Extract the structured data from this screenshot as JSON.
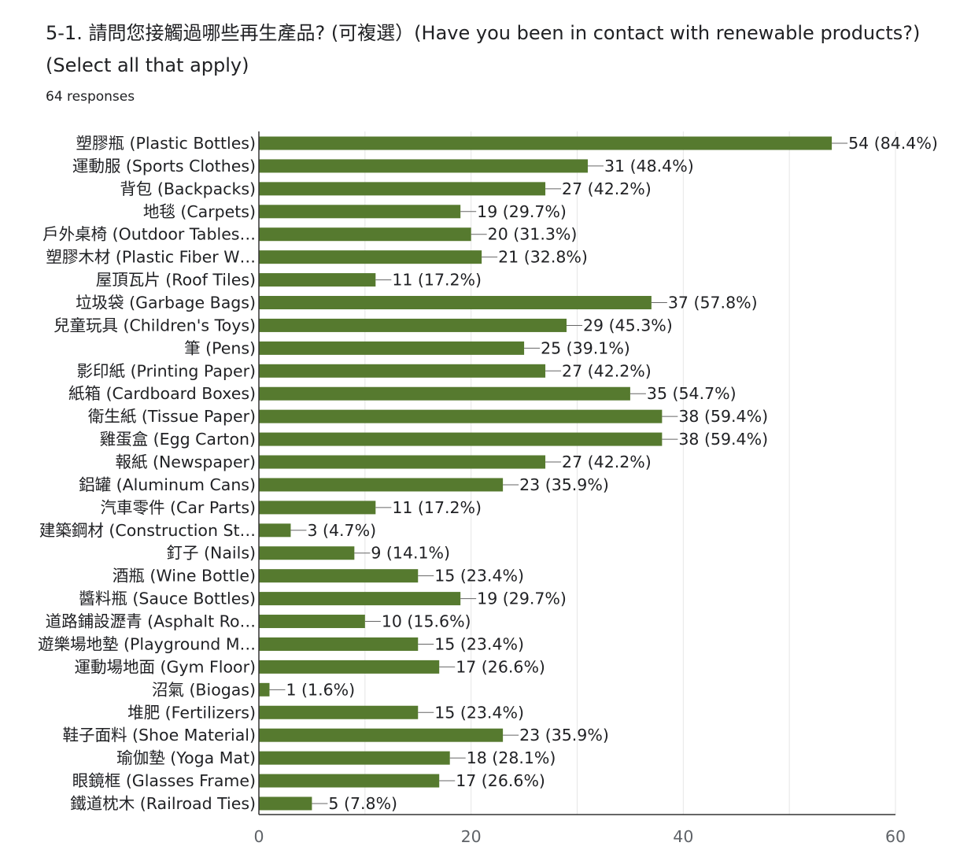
{
  "header": {
    "title": "5-1. 請問您接觸過哪些再生產品? (可複選）(Have you been in contact with renewable products?)(Select all that apply)",
    "responses": "64 responses"
  },
  "colors": {
    "bar": "#567A2F",
    "grid": "#e6e6e6",
    "axis": "#333333"
  },
  "chart_data": {
    "type": "bar",
    "orientation": "horizontal",
    "title": "5-1. 請問您接觸過哪些再生產品? (可複選）(Have you been in contact with renewable products?)(Select all that apply)",
    "subtitle": "64 responses",
    "total_responses": 64,
    "xlim": [
      0,
      60
    ],
    "xticks": [
      0,
      20,
      40,
      60
    ],
    "grid": true,
    "categories": [
      "塑膠瓶 (Plastic Bottles)",
      "運動服 (Sports Clothes)",
      "背包 (Backpacks)",
      "地毯 (Carpets)",
      "戶外桌椅 (Outdoor Tables…",
      "塑膠木材 (Plastic Fiber W…",
      "屋頂瓦片 (Roof Tiles)",
      "垃圾袋 (Garbage Bags)",
      "兒童玩具 (Children's Toys)",
      "筆 (Pens)",
      "影印紙 (Printing Paper)",
      "紙箱 (Cardboard Boxes)",
      "衛生紙 (Tissue Paper)",
      "雞蛋盒 (Egg Carton)",
      "報紙 (Newspaper)",
      "鋁罐 (Aluminum Cans)",
      "汽車零件 (Car Parts)",
      "建築鋼材 (Construction St…",
      "釘子 (Nails)",
      "酒瓶 (Wine Bottle)",
      "醬料瓶 (Sauce Bottles)",
      "道路鋪設瀝青 (Asphalt Ro…",
      "遊樂場地墊 (Playground M…",
      "運動場地面 (Gym Floor)",
      "沼氣 (Biogas)",
      "堆肥 (Fertilizers)",
      "鞋子面料 (Shoe Material)",
      "瑜伽墊 (Yoga Mat)",
      "眼鏡框 (Glasses Frame)",
      "鐵道枕木 (Railroad Ties)"
    ],
    "values": [
      54,
      31,
      27,
      19,
      20,
      21,
      11,
      37,
      29,
      25,
      27,
      35,
      38,
      38,
      27,
      23,
      11,
      3,
      9,
      15,
      19,
      10,
      15,
      17,
      1,
      15,
      23,
      18,
      17,
      5
    ],
    "value_labels": [
      "54 (84.4%)",
      "31 (48.4%)",
      "27 (42.2%)",
      "19 (29.7%)",
      "20 (31.3%)",
      "21 (32.8%)",
      "11 (17.2%)",
      "37 (57.8%)",
      "29 (45.3%)",
      "25 (39.1%)",
      "27 (42.2%)",
      "35 (54.7%)",
      "38 (59.4%)",
      "38 (59.4%)",
      "27 (42.2%)",
      "23 (35.9%)",
      "11 (17.2%)",
      "3 (4.7%)",
      "9 (14.1%)",
      "15 (23.4%)",
      "19 (29.7%)",
      "10 (15.6%)",
      "15 (23.4%)",
      "17 (26.6%)",
      "1 (1.6%)",
      "15 (23.4%)",
      "23 (35.9%)",
      "18 (28.1%)",
      "17 (26.6%)",
      "5 (7.8%)"
    ]
  }
}
